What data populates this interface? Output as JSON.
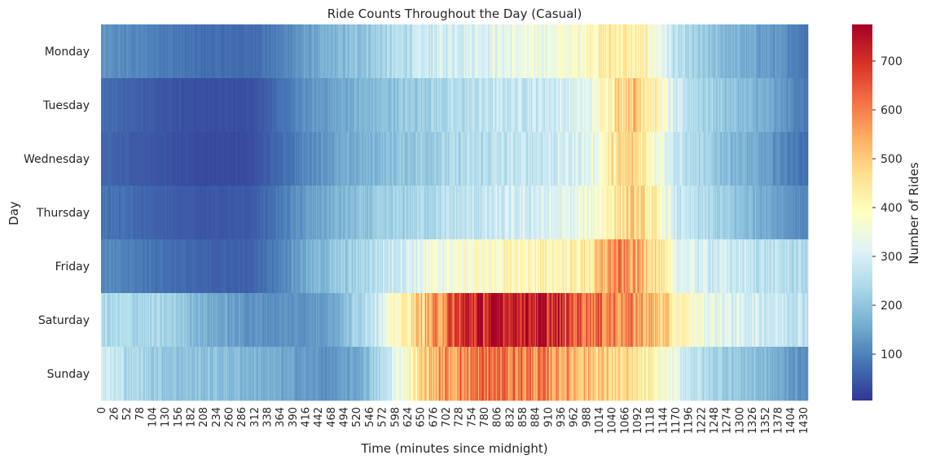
{
  "chart_data": {
    "type": "heatmap",
    "title": "Ride Counts Throughout the Day (Casual)",
    "xlabel": "Time (minutes since midnight)",
    "ylabel": "Day",
    "colorbar_label": "Number of Rides",
    "colormap": "RdYlBu_r",
    "value_range": [
      5,
      775
    ],
    "colorbar_ticks": [
      100,
      200,
      300,
      400,
      500,
      600,
      700
    ],
    "x_ticks": [
      0,
      26,
      52,
      78,
      104,
      130,
      156,
      182,
      208,
      234,
      260,
      286,
      312,
      338,
      364,
      390,
      416,
      442,
      468,
      494,
      520,
      546,
      572,
      598,
      624,
      650,
      676,
      702,
      728,
      754,
      780,
      806,
      832,
      858,
      884,
      910,
      936,
      962,
      988,
      1014,
      1040,
      1066,
      1092,
      1118,
      1144,
      1170,
      1196,
      1222,
      1248,
      1274,
      1300,
      1326,
      1352,
      1378,
      1404,
      1430
    ],
    "x_range": [
      0,
      1439
    ],
    "days": [
      "Monday",
      "Tuesday",
      "Wednesday",
      "Thursday",
      "Friday",
      "Saturday",
      "Sunday"
    ],
    "profiles": [
      {
        "day": "Monday",
        "minute": [
          0,
          100,
          200,
          300,
          360,
          420,
          480,
          540,
          600,
          660,
          720,
          780,
          840,
          900,
          960,
          1000,
          1040,
          1080,
          1110,
          1140,
          1170,
          1230,
          1290,
          1350,
          1400,
          1439
        ],
        "rides": [
          120,
          100,
          75,
          70,
          95,
          140,
          175,
          205,
          245,
          280,
          305,
          320,
          335,
          345,
          365,
          410,
          440,
          420,
          400,
          340,
          250,
          200,
          170,
          140,
          110,
          80
        ]
      },
      {
        "day": "Tuesday",
        "minute": [
          0,
          100,
          200,
          300,
          360,
          420,
          480,
          540,
          600,
          660,
          720,
          780,
          840,
          900,
          960,
          1000,
          1040,
          1080,
          1110,
          1140,
          1170,
          1230,
          1290,
          1350,
          1400,
          1439
        ],
        "rides": [
          75,
          50,
          35,
          35,
          70,
          120,
          150,
          175,
          200,
          225,
          240,
          260,
          275,
          285,
          300,
          330,
          460,
          520,
          470,
          380,
          280,
          230,
          195,
          160,
          120,
          80
        ]
      },
      {
        "day": "Wednesday",
        "minute": [
          0,
          100,
          200,
          300,
          360,
          420,
          480,
          540,
          600,
          660,
          720,
          780,
          840,
          900,
          960,
          1000,
          1040,
          1080,
          1110,
          1140,
          1170,
          1230,
          1290,
          1350,
          1400,
          1439
        ],
        "rides": [
          65,
          45,
          30,
          30,
          65,
          110,
          145,
          170,
          195,
          215,
          235,
          250,
          265,
          280,
          300,
          330,
          440,
          480,
          440,
          360,
          270,
          220,
          180,
          140,
          100,
          70
        ]
      },
      {
        "day": "Thursday",
        "minute": [
          0,
          100,
          200,
          300,
          360,
          420,
          480,
          540,
          600,
          660,
          720,
          780,
          840,
          900,
          960,
          1000,
          1040,
          1080,
          1110,
          1140,
          1170,
          1230,
          1290,
          1350,
          1400,
          1439
        ],
        "rides": [
          85,
          60,
          45,
          45,
          85,
          135,
          170,
          195,
          220,
          240,
          255,
          270,
          285,
          300,
          320,
          350,
          440,
          480,
          450,
          380,
          280,
          240,
          200,
          165,
          130,
          100
        ]
      },
      {
        "day": "Friday",
        "minute": [
          0,
          100,
          200,
          300,
          360,
          420,
          480,
          540,
          600,
          660,
          720,
          780,
          840,
          900,
          960,
          1000,
          1040,
          1080,
          1110,
          1140,
          1170,
          1230,
          1290,
          1350,
          1400,
          1439
        ],
        "rides": [
          110,
          85,
          60,
          55,
          100,
          160,
          200,
          240,
          290,
          330,
          360,
          385,
          400,
          410,
          420,
          450,
          580,
          560,
          520,
          430,
          330,
          300,
          280,
          260,
          250,
          240
        ]
      },
      {
        "day": "Saturday",
        "minute": [
          0,
          80,
          150,
          220,
          300,
          360,
          420,
          480,
          540,
          600,
          640,
          690,
          740,
          800,
          860,
          900,
          960,
          1000,
          1040,
          1080,
          1140,
          1180,
          1230,
          1290,
          1350,
          1400,
          1439
        ],
        "rides": [
          240,
          235,
          220,
          160,
          125,
          120,
          125,
          160,
          260,
          380,
          480,
          580,
          700,
          740,
          760,
          720,
          660,
          630,
          600,
          580,
          500,
          400,
          340,
          310,
          290,
          275,
          270
        ]
      },
      {
        "day": "Sunday",
        "minute": [
          0,
          60,
          150,
          250,
          320,
          400,
          460,
          520,
          580,
          620,
          660,
          700,
          760,
          800,
          860,
          900,
          960,
          1000,
          1040,
          1080,
          1140,
          1180,
          1230,
          1290,
          1350,
          1400,
          1439
        ],
        "rides": [
          300,
          240,
          200,
          190,
          170,
          140,
          120,
          150,
          260,
          390,
          500,
          560,
          600,
          620,
          600,
          580,
          540,
          510,
          480,
          450,
          380,
          300,
          240,
          210,
          180,
          140,
          110
        ]
      }
    ]
  }
}
